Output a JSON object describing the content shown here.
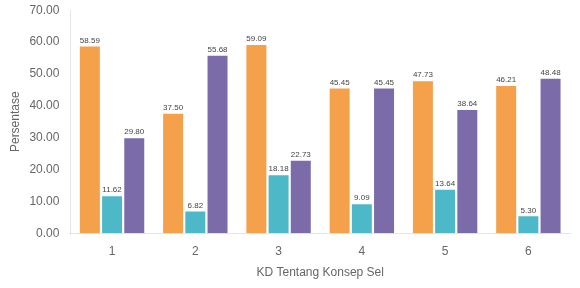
{
  "chart_data": {
    "type": "bar",
    "categories": [
      "1",
      "2",
      "3",
      "4",
      "5",
      "6"
    ],
    "series": [
      {
        "color": "#F5A04A",
        "values": [
          58.59,
          37.5,
          59.09,
          45.45,
          47.73,
          46.21
        ],
        "value_labels": [
          "58.59",
          "37.50",
          "59.09",
          "45.45",
          "47.73",
          "46.21"
        ]
      },
      {
        "color": "#4DB8C8",
        "values": [
          11.62,
          6.82,
          18.18,
          9.09,
          13.64,
          5.3
        ],
        "value_labels": [
          "11.62",
          "6.82",
          "18.18",
          "9.09",
          "13.64",
          "5.30"
        ]
      },
      {
        "color": "#7B6BA8",
        "values": [
          29.8,
          55.68,
          22.73,
          45.45,
          38.64,
          48.48
        ],
        "value_labels": [
          "29.80",
          "55.68",
          "22.73",
          "45.45",
          "38.64",
          "48.48"
        ]
      }
    ],
    "xlabel": "KD Tentang Konsep Sel",
    "ylabel": "Persentase",
    "ylim": [
      0,
      70
    ],
    "yticks": [
      {
        "value": 0,
        "label": "0.00"
      },
      {
        "value": 10,
        "label": "10.00"
      },
      {
        "value": 20,
        "label": "20.00"
      },
      {
        "value": 30,
        "label": "30.00"
      },
      {
        "value": 40,
        "label": "40.00"
      },
      {
        "value": 50,
        "label": "50.00"
      },
      {
        "value": 60,
        "label": "60.00"
      },
      {
        "value": 70,
        "label": "70.00"
      }
    ],
    "grid": false,
    "data_labels": true
  }
}
